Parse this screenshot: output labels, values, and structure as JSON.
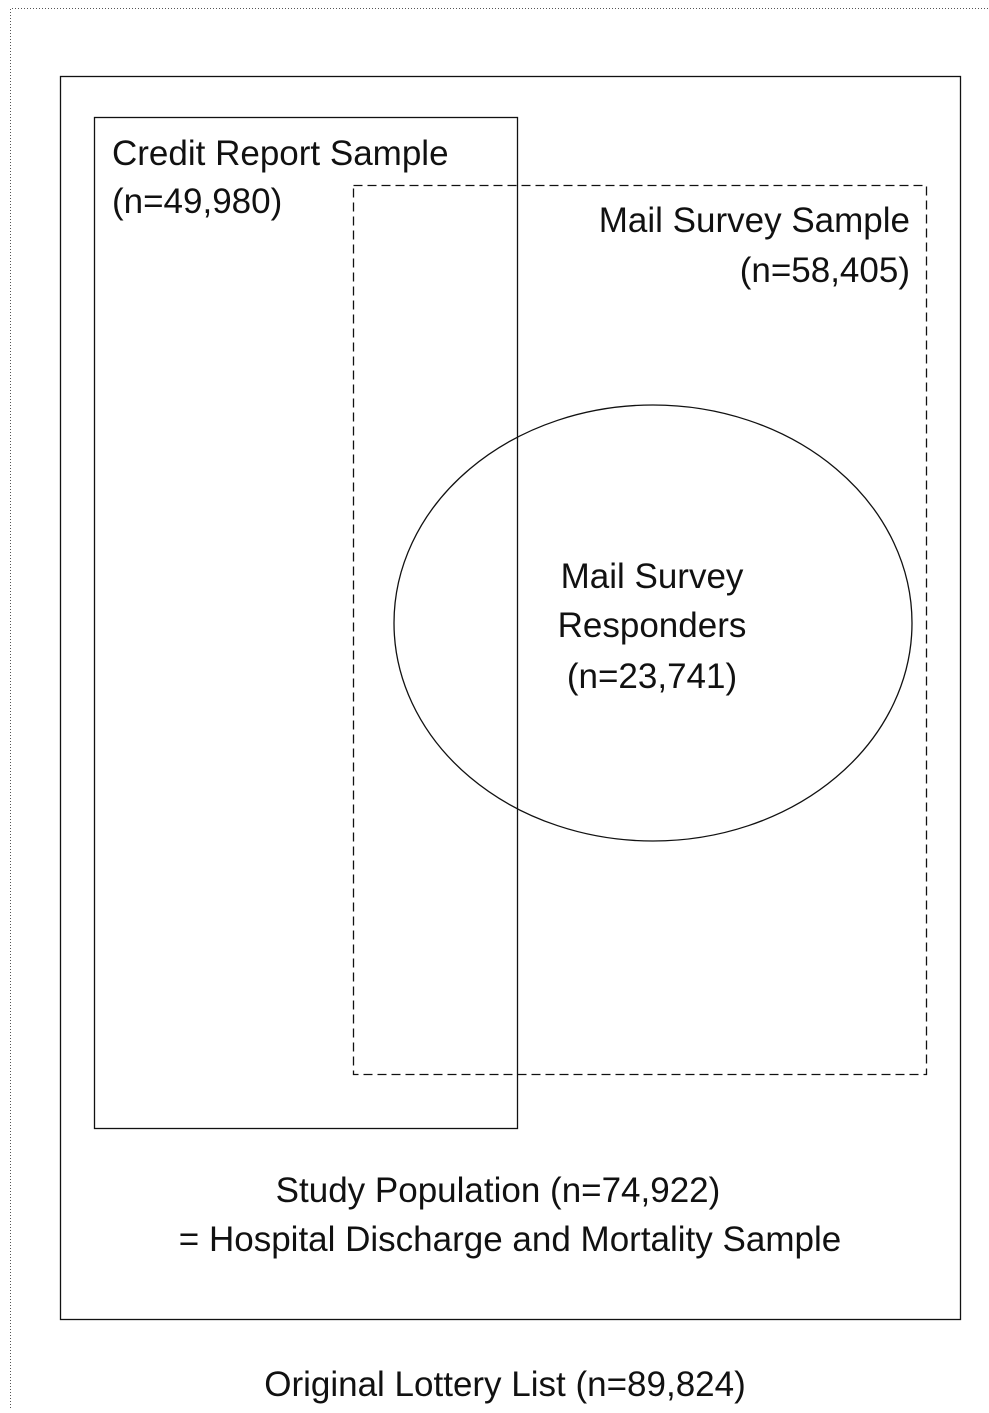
{
  "original_lottery_list": {
    "lines": [
      "Original Lottery List (n=89,824)"
    ]
  },
  "study_population": {
    "lines": [
      "Study Population (n=74,922)",
      "= Hospital Discharge and Mortality Sample"
    ]
  },
  "credit_report_sample": {
    "lines": [
      "Credit Report Sample",
      "(n=49,980)"
    ]
  },
  "mail_survey_sample": {
    "lines": [
      "Mail Survey Sample",
      "(n=58,405)"
    ]
  },
  "mail_survey_responders": {
    "lines": [
      "Mail Survey",
      "Responders",
      "(n=23,741)"
    ]
  }
}
